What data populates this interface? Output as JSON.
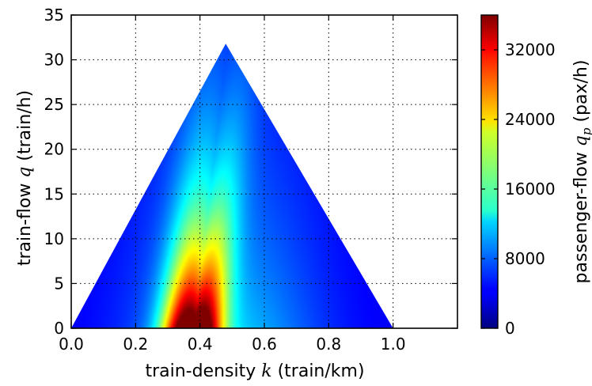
{
  "chart_data": {
    "type": "heatmap",
    "xlabel_prefix": "train-density ",
    "xlabel_var": "k",
    "xlabel_unit": " (train/km)",
    "ylabel_prefix": "train-flow ",
    "ylabel_var": "q",
    "ylabel_unit": " (train/h)",
    "colorbar_label_prefix": "passenger-flow ",
    "colorbar_label_var": "q",
    "colorbar_label_sub": "p",
    "colorbar_label_unit": " (pax/h)",
    "xlim": [
      0.0,
      1.2
    ],
    "ylim": [
      0,
      35
    ],
    "xticks": [
      0.0,
      0.2,
      0.4,
      0.6,
      0.8,
      1.0
    ],
    "xtick_labels": [
      "0.0",
      "0.2",
      "0.4",
      "0.6",
      "0.8",
      "1.0"
    ],
    "yticks": [
      0,
      5,
      10,
      15,
      20,
      25,
      30,
      35
    ],
    "ytick_labels": [
      "0",
      "5",
      "10",
      "15",
      "20",
      "25",
      "30",
      "35"
    ],
    "colorbar_range": [
      0,
      36000
    ],
    "colorbar_ticks": [
      0,
      8000,
      16000,
      24000,
      32000
    ],
    "colorbar_tick_labels": [
      "0",
      "8000",
      "16000",
      "24000",
      "32000"
    ],
    "colormap": "jet",
    "grid": true,
    "region_vertices": [
      [
        0.0,
        0.0
      ],
      [
        0.48,
        31.8
      ],
      [
        1.0,
        0.0
      ]
    ],
    "peak": {
      "k": 0.36,
      "q": 0.0,
      "qp": 36000
    },
    "ridges": [
      {
        "k0": 0.36,
        "slope_k_per_q": 0.0024,
        "spread": 0.055
      },
      {
        "k0": 0.4,
        "slope_k_per_q": 0.0042,
        "spread": 0.05
      }
    ]
  }
}
